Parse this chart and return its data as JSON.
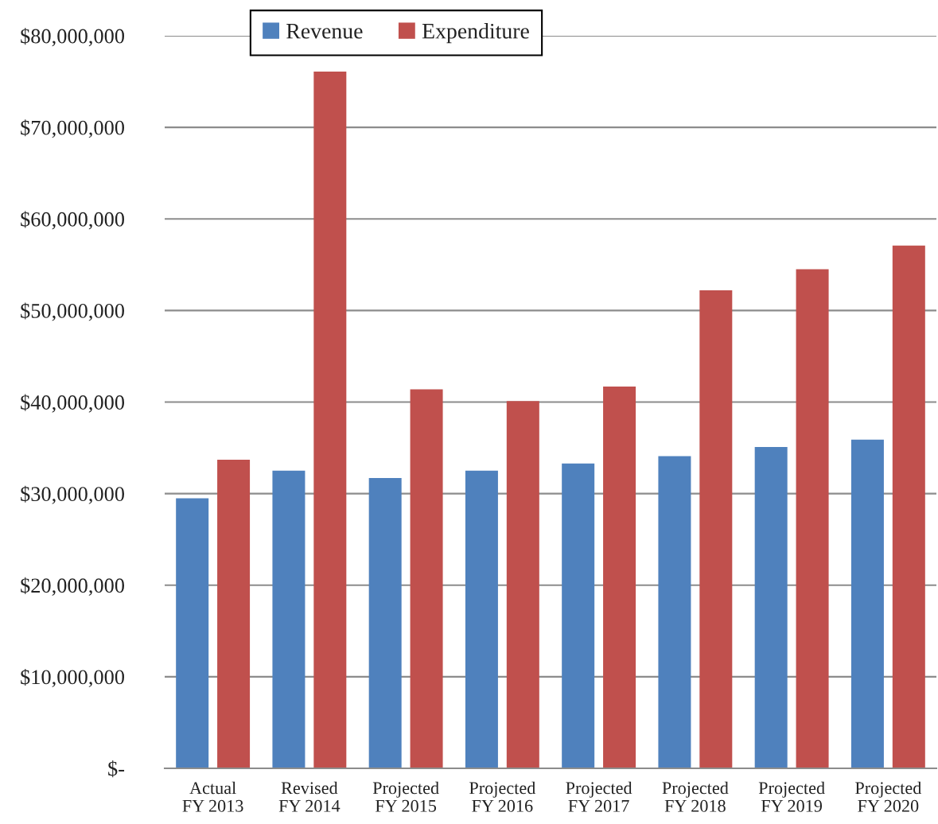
{
  "chart_data": {
    "type": "bar",
    "categories": [
      "Actual\nFY 2013",
      "Revised\nFY 2014",
      "Projected\nFY 2015",
      "Projected\nFY 2016",
      "Projected\nFY 2017",
      "Projected\nFY 2018",
      "Projected\nFY 2019",
      "Projected\nFY 2020"
    ],
    "series": [
      {
        "name": "Revenue",
        "color": "#4f81bd",
        "values": [
          29500000,
          32500000,
          31700000,
          32500000,
          33300000,
          34100000,
          35100000,
          35900000
        ]
      },
      {
        "name": "Expenditure",
        "color": "#c0504d",
        "values": [
          33700000,
          76100000,
          41400000,
          40100000,
          41700000,
          52200000,
          54500000,
          57100000
        ]
      }
    ],
    "ylim": [
      0,
      80000000
    ],
    "yticks": [
      {
        "value": 0,
        "label": "$-"
      },
      {
        "value": 10000000,
        "label": "$10,000,000"
      },
      {
        "value": 20000000,
        "label": "$20,000,000"
      },
      {
        "value": 30000000,
        "label": "$30,000,000"
      },
      {
        "value": 40000000,
        "label": "$40,000,000"
      },
      {
        "value": 50000000,
        "label": "$50,000,000"
      },
      {
        "value": 60000000,
        "label": "$60,000,000"
      },
      {
        "value": 70000000,
        "label": "$70,000,000"
      },
      {
        "value": 80000000,
        "label": "$80,000,000"
      }
    ],
    "grid": "y",
    "legend": "top left"
  }
}
